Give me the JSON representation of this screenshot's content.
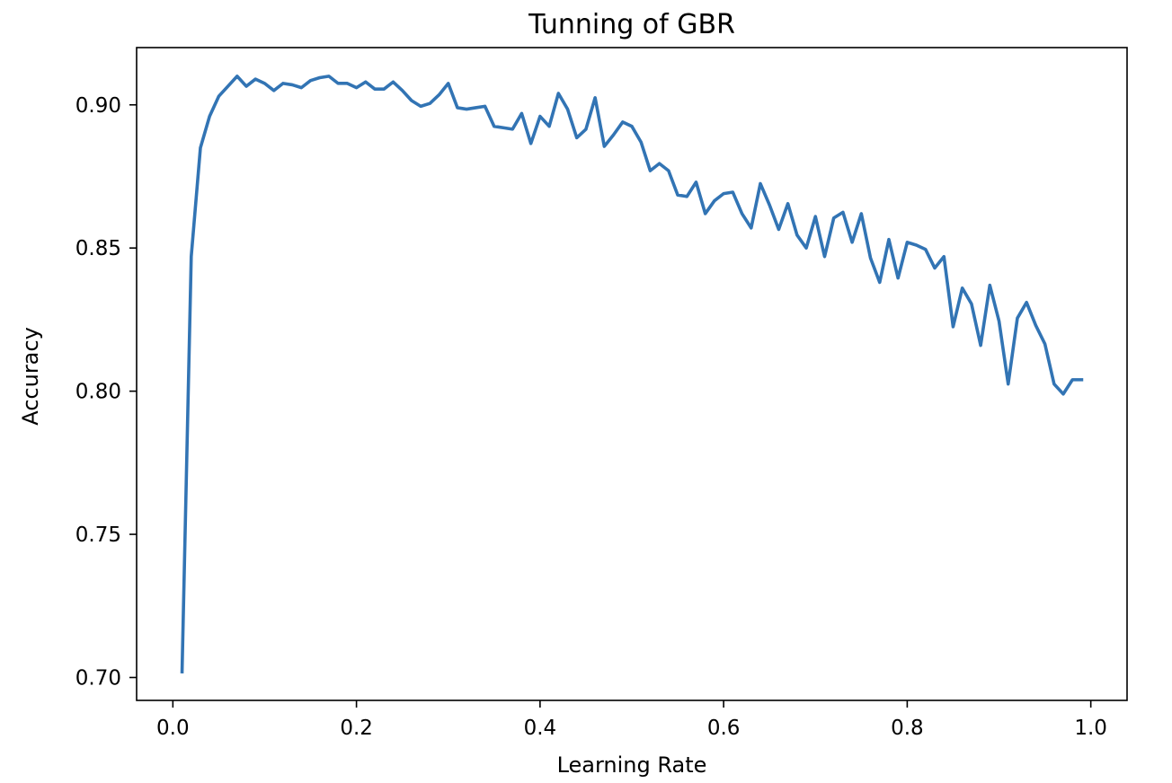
{
  "chart_data": {
    "type": "line",
    "title": "Tunning of GBR",
    "xlabel": "Learning Rate",
    "ylabel": "Accuracy",
    "xlim": [
      -0.0395,
      1.0395
    ],
    "ylim": [
      0.692,
      0.92
    ],
    "xticks": [
      0.0,
      0.2,
      0.4,
      0.6,
      0.8,
      1.0
    ],
    "xtick_labels": [
      "0.0",
      "0.2",
      "0.4",
      "0.6",
      "0.8",
      "1.0"
    ],
    "yticks": [
      0.7,
      0.75,
      0.8,
      0.85,
      0.9
    ],
    "ytick_labels": [
      "0.70",
      "0.75",
      "0.80",
      "0.85",
      "0.90"
    ],
    "grid": false,
    "legend": false,
    "series": [
      {
        "color": "#3274b4",
        "x": [
          0.01,
          0.02,
          0.03,
          0.04,
          0.05,
          0.06,
          0.07,
          0.08,
          0.09,
          0.1,
          0.11,
          0.12,
          0.13,
          0.14,
          0.15,
          0.16,
          0.17,
          0.18,
          0.19,
          0.2,
          0.21,
          0.22,
          0.23,
          0.24,
          0.25,
          0.26,
          0.27,
          0.28,
          0.29,
          0.3,
          0.31,
          0.32,
          0.33,
          0.34,
          0.35,
          0.36,
          0.37,
          0.38,
          0.39,
          0.4,
          0.41,
          0.42,
          0.43,
          0.44,
          0.45,
          0.46,
          0.47,
          0.48,
          0.49,
          0.5,
          0.51,
          0.52,
          0.53,
          0.54,
          0.55,
          0.56,
          0.57,
          0.58,
          0.59,
          0.6,
          0.61,
          0.62,
          0.63,
          0.64,
          0.65,
          0.66,
          0.67,
          0.68,
          0.69,
          0.7,
          0.71,
          0.72,
          0.73,
          0.74,
          0.75,
          0.76,
          0.77,
          0.78,
          0.79,
          0.8,
          0.81,
          0.82,
          0.83,
          0.84,
          0.85,
          0.86,
          0.87,
          0.88,
          0.89,
          0.9,
          0.91,
          0.92,
          0.93,
          0.94,
          0.95,
          0.96,
          0.97,
          0.98,
          0.99
        ],
        "y": [
          0.702,
          0.847,
          0.885,
          0.896,
          0.903,
          0.9065,
          0.91,
          0.9065,
          0.909,
          0.9075,
          0.905,
          0.9075,
          0.907,
          0.906,
          0.9085,
          0.9095,
          0.91,
          0.9075,
          0.9075,
          0.906,
          0.908,
          0.9055,
          0.9055,
          0.908,
          0.905,
          0.9015,
          0.8995,
          0.9005,
          0.9035,
          0.9075,
          0.899,
          0.8985,
          0.899,
          0.8995,
          0.8925,
          0.892,
          0.8915,
          0.897,
          0.8865,
          0.896,
          0.8925,
          0.904,
          0.8985,
          0.8885,
          0.8915,
          0.9025,
          0.8855,
          0.8895,
          0.894,
          0.8925,
          0.887,
          0.877,
          0.8795,
          0.877,
          0.8685,
          0.868,
          0.873,
          0.862,
          0.8665,
          0.869,
          0.8695,
          0.862,
          0.857,
          0.8725,
          0.865,
          0.8565,
          0.8655,
          0.8545,
          0.85,
          0.861,
          0.847,
          0.8605,
          0.8625,
          0.852,
          0.862,
          0.8465,
          0.838,
          0.853,
          0.8395,
          0.852,
          0.851,
          0.8495,
          0.843,
          0.847,
          0.8225,
          0.836,
          0.8305,
          0.816,
          0.837,
          0.8245,
          0.8025,
          0.8255,
          0.831,
          0.823,
          0.8165,
          0.8025,
          0.799,
          0.804,
          0.804
        ]
      }
    ]
  }
}
